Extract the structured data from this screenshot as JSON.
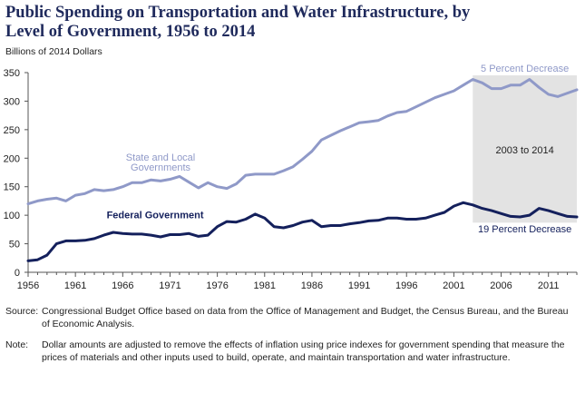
{
  "header": {
    "title_line1": "Public Spending on Transportation and Water Infrastructure, by",
    "title_line2": "Level of Government, 1956 to 2014",
    "units": "Billions of 2014 Dollars"
  },
  "colors": {
    "state_local": "#8f99c8",
    "federal": "#14205c",
    "shade": "#e3e3e3",
    "text": "#222222"
  },
  "chart_data": {
    "type": "line",
    "title": "Public Spending on Transportation and Water Infrastructure, by Level of Government, 1956 to 2014",
    "ylabel": "Billions of 2014 Dollars",
    "xlabel": "",
    "ylim": [
      0,
      350
    ],
    "xlim": [
      1956,
      2014
    ],
    "yticks": [
      0,
      50,
      100,
      150,
      200,
      250,
      300,
      350
    ],
    "xticks": [
      1956,
      1961,
      1966,
      1971,
      1976,
      1981,
      1986,
      1991,
      1996,
      2001,
      2006,
      2011
    ],
    "shaded_region": {
      "from": 2003,
      "to": 2014,
      "label": "2003 to 2014"
    },
    "x": [
      1956,
      1957,
      1958,
      1959,
      1960,
      1961,
      1962,
      1963,
      1964,
      1965,
      1966,
      1967,
      1968,
      1969,
      1970,
      1971,
      1972,
      1973,
      1974,
      1975,
      1976,
      1977,
      1978,
      1979,
      1980,
      1981,
      1982,
      1983,
      1984,
      1985,
      1986,
      1987,
      1988,
      1989,
      1990,
      1991,
      1992,
      1993,
      1994,
      1995,
      1996,
      1997,
      1998,
      1999,
      2000,
      2001,
      2002,
      2003,
      2004,
      2005,
      2006,
      2007,
      2008,
      2009,
      2010,
      2011,
      2012,
      2013,
      2014
    ],
    "series": [
      {
        "name": "State and Local Governments",
        "label_line1": "State and Local",
        "label_line2": "Governments",
        "values": [
          120,
          125,
          128,
          130,
          125,
          135,
          138,
          145,
          143,
          145,
          150,
          157,
          157,
          162,
          160,
          163,
          168,
          158,
          148,
          157,
          150,
          147,
          155,
          170,
          172,
          172,
          172,
          178,
          185,
          198,
          212,
          232,
          240,
          248,
          255,
          262,
          264,
          266,
          274,
          280,
          282,
          290,
          298,
          306,
          312,
          318,
          328,
          338,
          332,
          322,
          322,
          328,
          328,
          338,
          324,
          312,
          308,
          314,
          320
        ],
        "annotation": "5 Percent Decrease"
      },
      {
        "name": "Federal Government",
        "label_line1": "Federal Government",
        "values": [
          20,
          22,
          30,
          50,
          55,
          55,
          56,
          59,
          65,
          70,
          68,
          67,
          67,
          65,
          62,
          66,
          66,
          68,
          63,
          65,
          80,
          89,
          88,
          93,
          102,
          95,
          80,
          78,
          82,
          88,
          91,
          80,
          82,
          82,
          85,
          87,
          90,
          91,
          95,
          95,
          93,
          93,
          95,
          100,
          105,
          116,
          122,
          118,
          112,
          108,
          103,
          98,
          97,
          100,
          112,
          108,
          103,
          98,
          97
        ],
        "annotation": "19 Percent Decrease"
      }
    ]
  },
  "footnotes": {
    "source_label": "Source:",
    "source_text": "Congressional Budget Office based on data from the Office of Management and Budget, the Census Bureau, and the Bureau of Economic Analysis.",
    "note_label": "Note:",
    "note_text": "Dollar amounts are adjusted to remove the effects of inflation using price indexes for government spending that measure the prices of materials and other inputs used to build, operate, and maintain transportation and water infrastructure."
  }
}
